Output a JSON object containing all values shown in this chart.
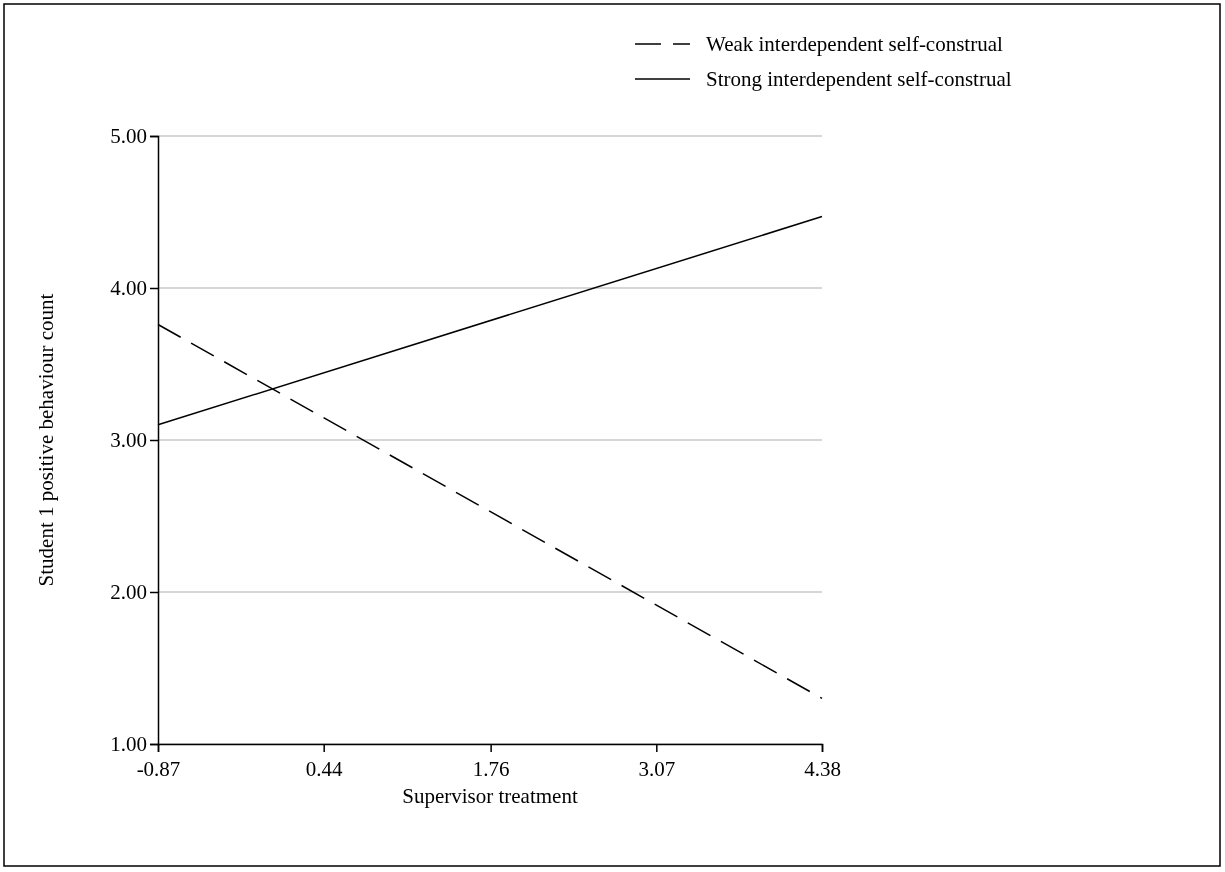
{
  "chart_data": {
    "type": "line",
    "xlabel": "Supervisor treatment",
    "ylabel": "Student 1 positive behaviour count",
    "xlim": [
      -0.87,
      4.38
    ],
    "xticks": [
      -0.87,
      0.44,
      1.76,
      3.07,
      4.38
    ],
    "ylim": [
      1,
      5
    ],
    "yticks": [
      {
        "value": 1,
        "label": "1.00"
      },
      {
        "value": 2,
        "label": "2.00"
      },
      {
        "value": 3,
        "label": "3.00"
      },
      {
        "value": 4,
        "label": "4.00"
      },
      {
        "value": 5,
        "label": "5.00"
      }
    ],
    "x": [
      -0.87,
      4.38
    ],
    "grid": "y",
    "legend": "top right",
    "marker": "none",
    "series": [
      {
        "name": "Weak interdependent self-construal",
        "color": "#000000",
        "line_style": "dashed",
        "values": [
          3.76,
          1.3
        ]
      },
      {
        "name": "Strong interdependent self-construal",
        "color": "#000000",
        "line_style": "solid",
        "values": [
          3.1,
          4.47
        ]
      }
    ]
  }
}
